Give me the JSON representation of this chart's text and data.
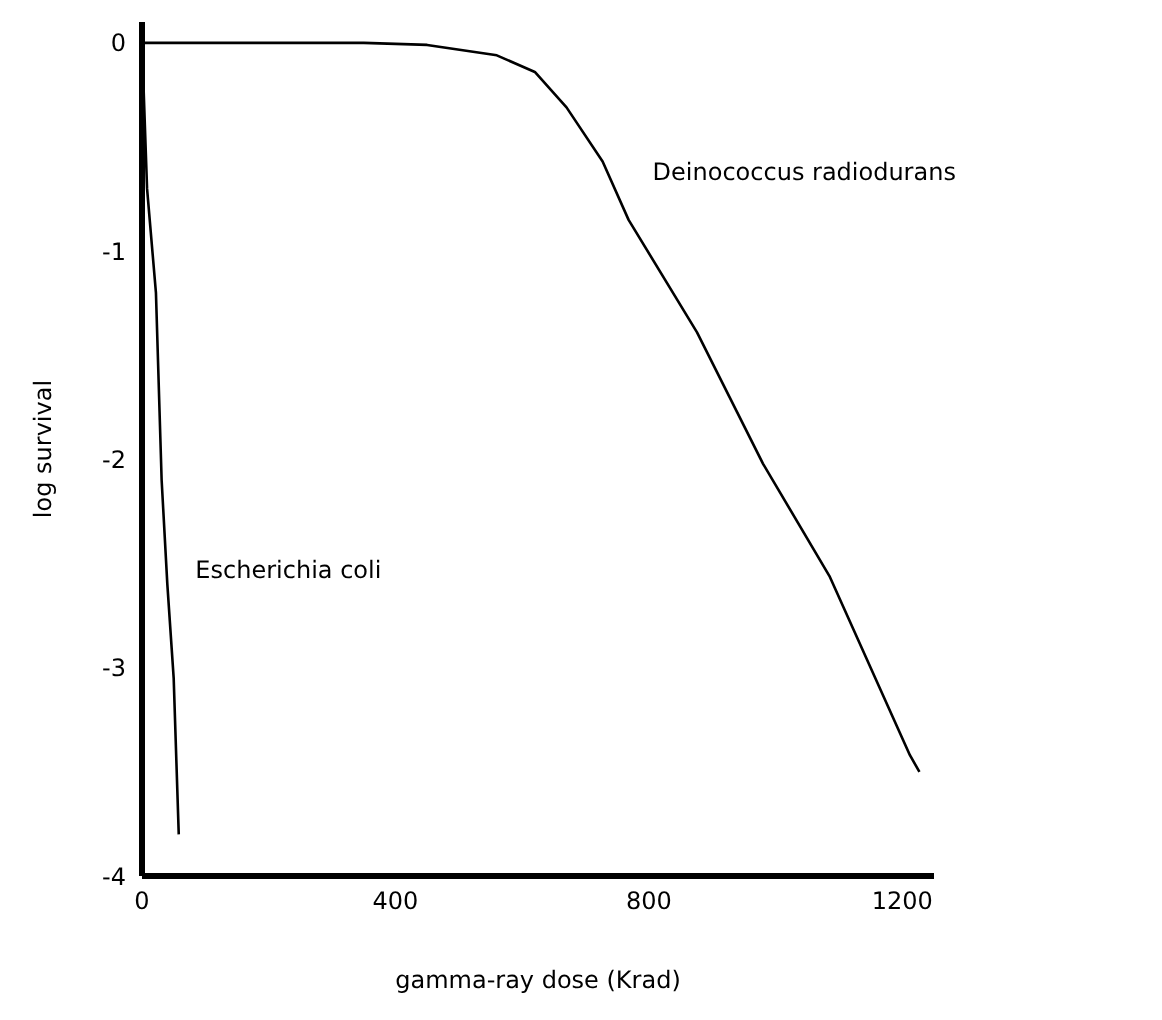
{
  "chart_data": {
    "type": "line",
    "xlabel": "gamma-ray dose (Krad)",
    "ylabel": "log survival",
    "xlim": [
      0,
      1250
    ],
    "ylim": [
      -4,
      0.1
    ],
    "xticks": [
      0,
      400,
      800,
      1200
    ],
    "yticks": [
      0,
      -1,
      -2,
      -3,
      -4
    ],
    "marker": "none",
    "line_style": "solid",
    "series": [
      {
        "name": "Deinococcus radiodurans",
        "color": "#000000",
        "x": [
          0,
          350,
          450,
          560,
          620,
          670,
          727,
          768,
          876,
          980,
          1085,
          1212,
          1227
        ],
        "values": [
          0,
          0,
          -0.01,
          -0.06,
          -0.14,
          -0.31,
          -0.57,
          -0.85,
          -1.39,
          -2.02,
          -2.56,
          -3.42,
          -3.5
        ]
      },
      {
        "name": "Escherichia coli",
        "color": "#000000",
        "x": [
          0,
          8,
          22,
          31,
          40,
          50,
          58
        ],
        "values": [
          0,
          -0.7,
          -1.2,
          -2.1,
          -2.6,
          -3.05,
          -3.8
        ]
      }
    ]
  }
}
